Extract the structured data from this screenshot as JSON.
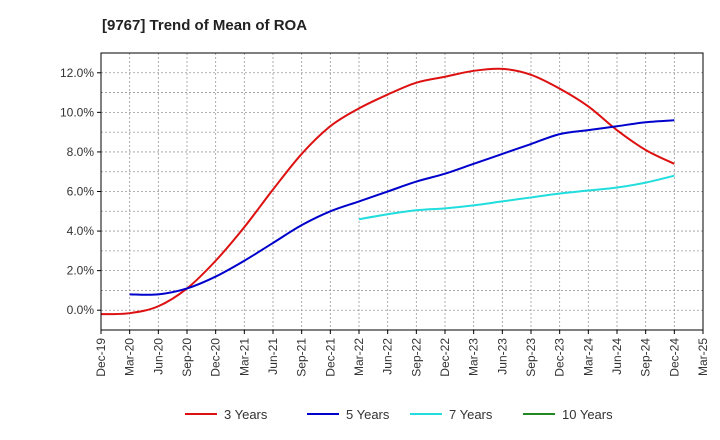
{
  "chart_data": {
    "type": "line",
    "title": "[9767]  Trend of Mean of ROA",
    "xlabel": "",
    "ylabel": "",
    "x_ticks": [
      "Dec-19",
      "Mar-20",
      "Jun-20",
      "Sep-20",
      "Dec-20",
      "Mar-21",
      "Jun-21",
      "Sep-21",
      "Dec-21",
      "Mar-22",
      "Jun-22",
      "Sep-22",
      "Dec-22",
      "Mar-23",
      "Jun-23",
      "Sep-23",
      "Dec-23",
      "Mar-24",
      "Jun-24",
      "Sep-24",
      "Dec-24",
      "Mar-25"
    ],
    "y_ticks": [
      "0.0%",
      "2.0%",
      "4.0%",
      "6.0%",
      "8.0%",
      "10.0%",
      "12.0%"
    ],
    "y_tick_values": [
      0,
      2,
      4,
      6,
      8,
      10,
      12
    ],
    "ylim": [
      -1.0,
      13.0
    ],
    "grid": true,
    "legend_position": "bottom",
    "series": [
      {
        "name": "3 Years",
        "color": "#dd1111",
        "x": [
          "Dec-19",
          "Mar-20",
          "Jun-20",
          "Sep-20",
          "Dec-20",
          "Mar-21",
          "Jun-21",
          "Sep-21",
          "Dec-21",
          "Mar-22",
          "Jun-22",
          "Sep-22",
          "Dec-22",
          "Mar-23",
          "Jun-23",
          "Sep-23",
          "Dec-23",
          "Mar-24",
          "Jun-24",
          "Sep-24",
          "Dec-24"
        ],
        "values": [
          -0.2,
          -0.15,
          0.2,
          1.1,
          2.5,
          4.2,
          6.1,
          7.9,
          9.3,
          10.2,
          10.9,
          11.5,
          11.8,
          12.1,
          12.2,
          11.9,
          11.2,
          10.3,
          9.1,
          8.1,
          7.4
        ]
      },
      {
        "name": "5 Years",
        "color": "#0000cc",
        "x": [
          "Mar-20",
          "Jun-20",
          "Sep-20",
          "Dec-20",
          "Mar-21",
          "Jun-21",
          "Sep-21",
          "Dec-21",
          "Mar-22",
          "Jun-22",
          "Sep-22",
          "Dec-22",
          "Mar-23",
          "Jun-23",
          "Sep-23",
          "Dec-23",
          "Mar-24",
          "Jun-24",
          "Sep-24",
          "Dec-24"
        ],
        "values": [
          0.8,
          0.8,
          1.1,
          1.7,
          2.5,
          3.4,
          4.3,
          5.0,
          5.5,
          6.0,
          6.5,
          6.9,
          7.4,
          7.9,
          8.4,
          8.9,
          9.1,
          9.3,
          9.5,
          9.6
        ]
      },
      {
        "name": "7 Years",
        "color": "#22dddd",
        "x": [
          "Mar-22",
          "Jun-22",
          "Sep-22",
          "Dec-22",
          "Mar-23",
          "Jun-23",
          "Sep-23",
          "Dec-23",
          "Mar-24",
          "Jun-24",
          "Sep-24",
          "Dec-24"
        ],
        "values": [
          4.6,
          4.85,
          5.05,
          5.15,
          5.3,
          5.5,
          5.7,
          5.9,
          6.05,
          6.2,
          6.45,
          6.8
        ]
      },
      {
        "name": "10 Years",
        "color": "#228822",
        "x": [],
        "values": []
      }
    ]
  }
}
